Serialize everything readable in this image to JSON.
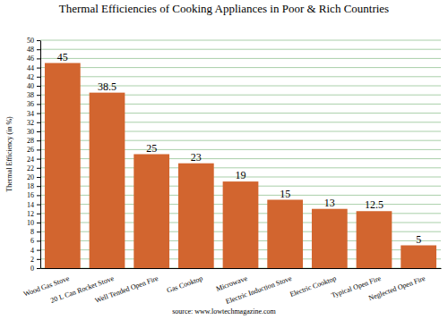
{
  "chart_data": {
    "type": "bar",
    "title": "Thermal Efficiencies of Cooking Appliances in Poor & Rich Countries",
    "y_label": "Thermal Efficiency (in %)",
    "source": "source: www.lowtechmagazine.com",
    "categories": [
      "Wood Gas Stove",
      "20 L Can Rocket Stove",
      "Well Tended Open Fire",
      "Gas Cooktop",
      "Microwave",
      "Electric Induction Stove",
      "Electric Cooktop",
      "Typical Open Fire",
      "Neglected Open Fire"
    ],
    "values": [
      45,
      38.5,
      25,
      23,
      19,
      15,
      13,
      12.5,
      5
    ],
    "color": "#d2652f",
    "ylim": [
      0,
      50
    ],
    "yticks": [
      0,
      2,
      4,
      6,
      8,
      10,
      12,
      14,
      16,
      18,
      20,
      22,
      24,
      26,
      28,
      30,
      32,
      34,
      36,
      38,
      40,
      42,
      44,
      46,
      48,
      50
    ],
    "grid": true,
    "data_labels": true
  }
}
